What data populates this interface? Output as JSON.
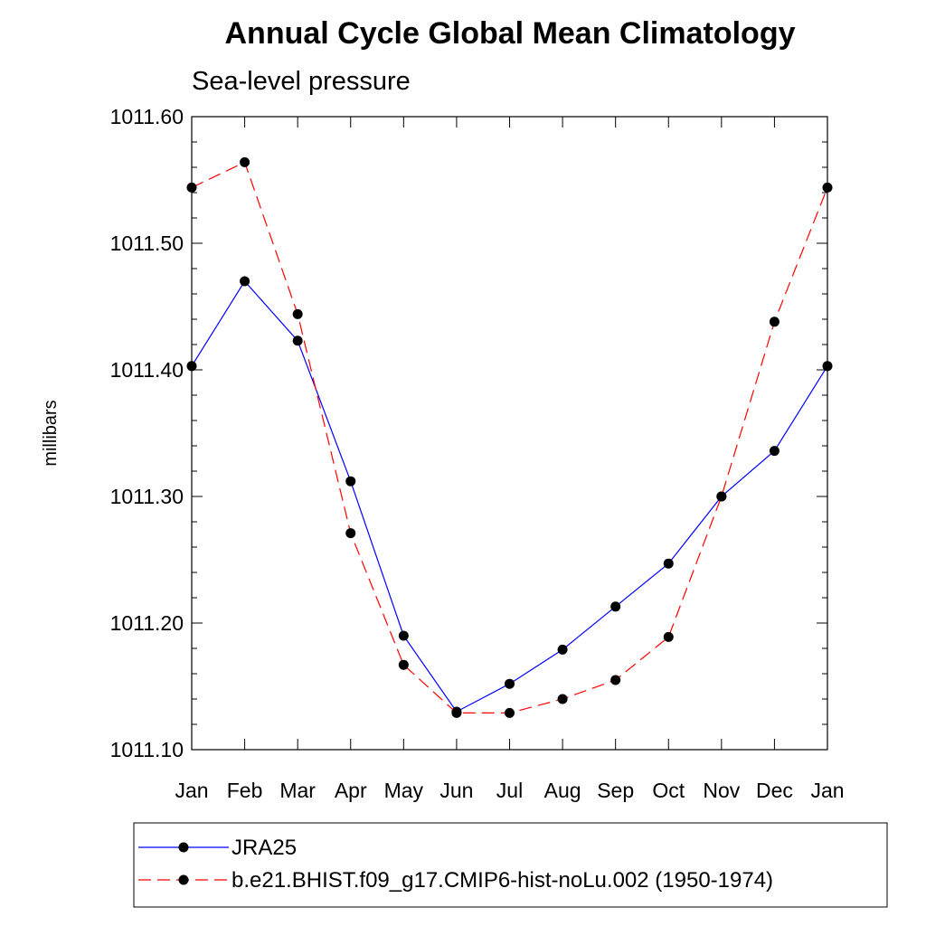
{
  "chart_data": {
    "type": "line",
    "title": "Annual Cycle Global Mean Climatology",
    "subtitle": "Sea-level pressure",
    "xlabel": "",
    "ylabel": "millibars",
    "categories": [
      "Jan",
      "Feb",
      "Mar",
      "Apr",
      "May",
      "Jun",
      "Jul",
      "Aug",
      "Sep",
      "Oct",
      "Nov",
      "Dec",
      "Jan"
    ],
    "ylim": [
      1011.1,
      1011.6
    ],
    "yticks": [
      "1011.10",
      "1011.20",
      "1011.30",
      "1011.40",
      "1011.50",
      "1011.60"
    ],
    "grid": false,
    "legend_position": "bottom",
    "series": [
      {
        "name": "JRA25",
        "color": "#0000ff",
        "line_style": "solid",
        "marker": "filled-circle",
        "values": [
          1011.403,
          1011.47,
          1011.423,
          1011.312,
          1011.19,
          1011.13,
          1011.152,
          1011.179,
          1011.213,
          1011.247,
          1011.3,
          1011.336,
          1011.403
        ]
      },
      {
        "name": "b.e21.BHIST.f09_g17.CMIP6-hist-noLu.002 (1950-1974)",
        "color": "#ff0000",
        "line_style": "dashed",
        "marker": "filled-circle",
        "values": [
          1011.544,
          1011.564,
          1011.444,
          1011.271,
          1011.167,
          1011.129,
          1011.129,
          1011.14,
          1011.155,
          1011.189,
          1011.3,
          1011.438,
          1011.544
        ]
      }
    ]
  }
}
